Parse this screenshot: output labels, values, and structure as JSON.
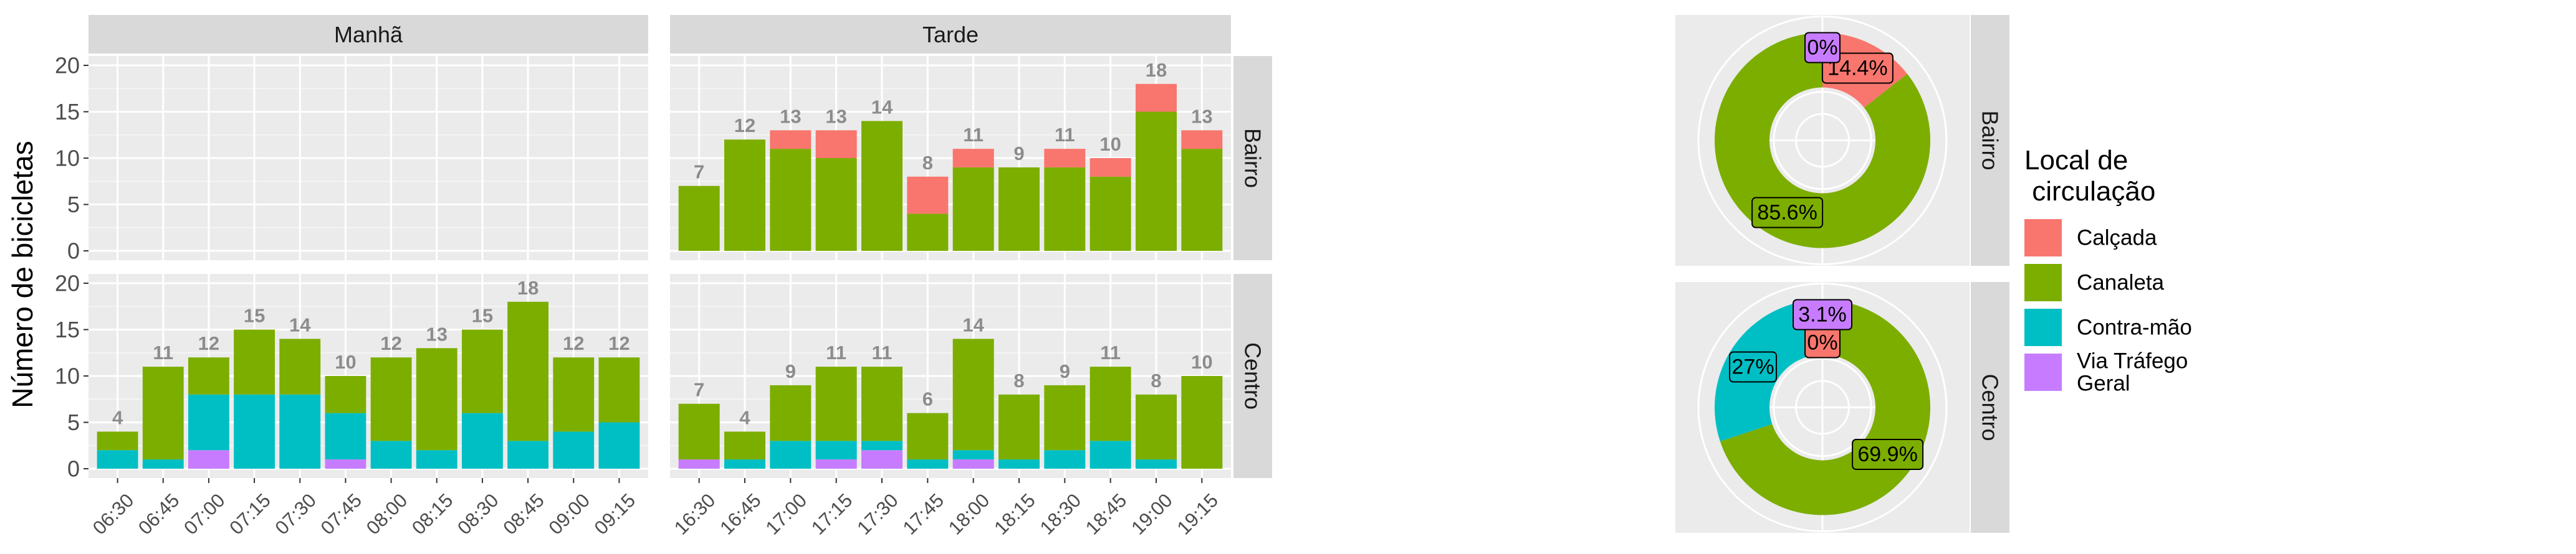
{
  "chart_data": [
    {
      "type": "bar",
      "stacked": true,
      "ylabel": "Número de bicicletas",
      "ylim": [
        0,
        20
      ],
      "yticks": [
        0,
        5,
        10,
        15,
        20
      ],
      "column_facets": [
        "Manhã",
        "Tarde"
      ],
      "row_facets": [
        "Bairro",
        "Centro"
      ],
      "series_order": [
        "Calçada",
        "Canaleta",
        "Contra-mão",
        "Via Tráfego Geral"
      ],
      "colors": {
        "Calçada": "#F8766D",
        "Canaleta": "#7CAE00",
        "Contra-mão": "#00BFC4",
        "Via Tráfego Geral": "#C77CFF"
      },
      "grid": true,
      "panels": [
        {
          "column": "Manhã",
          "row": "Bairro",
          "categories": [
            "06:30",
            "06:45",
            "07:00",
            "07:15",
            "07:30",
            "07:45",
            "08:00",
            "08:15",
            "08:30",
            "08:45",
            "09:00",
            "09:15"
          ],
          "bars": [],
          "totals": []
        },
        {
          "column": "Tarde",
          "row": "Bairro",
          "categories": [
            "16:30",
            "16:45",
            "17:00",
            "17:15",
            "17:30",
            "17:45",
            "18:00",
            "18:15",
            "18:30",
            "18:45",
            "19:00",
            "19:15"
          ],
          "bars": [
            {
              "Via Tráfego Geral": 0,
              "Contra-mão": 0,
              "Canaleta": 7,
              "Calçada": 0
            },
            {
              "Via Tráfego Geral": 0,
              "Contra-mão": 0,
              "Canaleta": 12,
              "Calçada": 0
            },
            {
              "Via Tráfego Geral": 0,
              "Contra-mão": 0,
              "Canaleta": 11,
              "Calçada": 2
            },
            {
              "Via Tráfego Geral": 0,
              "Contra-mão": 0,
              "Canaleta": 10,
              "Calçada": 3
            },
            {
              "Via Tráfego Geral": 0,
              "Contra-mão": 0,
              "Canaleta": 14,
              "Calçada": 0
            },
            {
              "Via Tráfego Geral": 0,
              "Contra-mão": 0,
              "Canaleta": 4,
              "Calçada": 4
            },
            {
              "Via Tráfego Geral": 0,
              "Contra-mão": 0,
              "Canaleta": 9,
              "Calçada": 2
            },
            {
              "Via Tráfego Geral": 0,
              "Contra-mão": 0,
              "Canaleta": 9,
              "Calçada": 0
            },
            {
              "Via Tráfego Geral": 0,
              "Contra-mão": 0,
              "Canaleta": 9,
              "Calçada": 2
            },
            {
              "Via Tráfego Geral": 0,
              "Contra-mão": 0,
              "Canaleta": 8,
              "Calçada": 2
            },
            {
              "Via Tráfego Geral": 0,
              "Contra-mão": 0,
              "Canaleta": 15,
              "Calçada": 3
            },
            {
              "Via Tráfego Geral": 0,
              "Contra-mão": 0,
              "Canaleta": 11,
              "Calçada": 2
            }
          ],
          "totals": [
            7,
            12,
            13,
            13,
            14,
            8,
            11,
            9,
            11,
            10,
            18,
            13
          ]
        },
        {
          "column": "Manhã",
          "row": "Centro",
          "categories": [
            "06:30",
            "06:45",
            "07:00",
            "07:15",
            "07:30",
            "07:45",
            "08:00",
            "08:15",
            "08:30",
            "08:45",
            "09:00",
            "09:15"
          ],
          "bars": [
            {
              "Via Tráfego Geral": 0,
              "Contra-mão": 2,
              "Canaleta": 2,
              "Calçada": 0
            },
            {
              "Via Tráfego Geral": 0,
              "Contra-mão": 1,
              "Canaleta": 10,
              "Calçada": 0
            },
            {
              "Via Tráfego Geral": 2,
              "Contra-mão": 6,
              "Canaleta": 4,
              "Calçada": 0
            },
            {
              "Via Tráfego Geral": 0,
              "Contra-mão": 8,
              "Canaleta": 7,
              "Calçada": 0
            },
            {
              "Via Tráfego Geral": 0,
              "Contra-mão": 8,
              "Canaleta": 6,
              "Calçada": 0
            },
            {
              "Via Tráfego Geral": 1,
              "Contra-mão": 5,
              "Canaleta": 4,
              "Calçada": 0
            },
            {
              "Via Tráfego Geral": 0,
              "Contra-mão": 3,
              "Canaleta": 9,
              "Calçada": 0
            },
            {
              "Via Tráfego Geral": 0,
              "Contra-mão": 2,
              "Canaleta": 11,
              "Calçada": 0
            },
            {
              "Via Tráfego Geral": 0,
              "Contra-mão": 6,
              "Canaleta": 9,
              "Calçada": 0
            },
            {
              "Via Tráfego Geral": 0,
              "Contra-mão": 3,
              "Canaleta": 15,
              "Calçada": 0
            },
            {
              "Via Tráfego Geral": 0,
              "Contra-mão": 4,
              "Canaleta": 8,
              "Calçada": 0
            },
            {
              "Via Tráfego Geral": 0,
              "Contra-mão": 5,
              "Canaleta": 7,
              "Calçada": 0
            }
          ],
          "totals": [
            4,
            11,
            12,
            15,
            14,
            10,
            12,
            13,
            15,
            18,
            12,
            12
          ]
        },
        {
          "column": "Tarde",
          "row": "Centro",
          "categories": [
            "16:30",
            "16:45",
            "17:00",
            "17:15",
            "17:30",
            "17:45",
            "18:00",
            "18:15",
            "18:30",
            "18:45",
            "19:00",
            "19:15"
          ],
          "bars": [
            {
              "Via Tráfego Geral": 1,
              "Contra-mão": 0,
              "Canaleta": 6,
              "Calçada": 0
            },
            {
              "Via Tráfego Geral": 0,
              "Contra-mão": 1,
              "Canaleta": 3,
              "Calçada": 0
            },
            {
              "Via Tráfego Geral": 0,
              "Contra-mão": 3,
              "Canaleta": 6,
              "Calçada": 0
            },
            {
              "Via Tráfego Geral": 1,
              "Contra-mão": 2,
              "Canaleta": 8,
              "Calçada": 0
            },
            {
              "Via Tráfego Geral": 2,
              "Contra-mão": 1,
              "Canaleta": 8,
              "Calçada": 0
            },
            {
              "Via Tráfego Geral": 0,
              "Contra-mão": 1,
              "Canaleta": 5,
              "Calçada": 0
            },
            {
              "Via Tráfego Geral": 1,
              "Contra-mão": 1,
              "Canaleta": 12,
              "Calçada": 0
            },
            {
              "Via Tráfego Geral": 0,
              "Contra-mão": 1,
              "Canaleta": 7,
              "Calçada": 0
            },
            {
              "Via Tráfego Geral": 0,
              "Contra-mão": 2,
              "Canaleta": 7,
              "Calçada": 0
            },
            {
              "Via Tráfego Geral": 0,
              "Contra-mão": 3,
              "Canaleta": 8,
              "Calçada": 0
            },
            {
              "Via Tráfego Geral": 0,
              "Contra-mão": 1,
              "Canaleta": 7,
              "Calçada": 0
            },
            {
              "Via Tráfego Geral": 0,
              "Contra-mão": 0,
              "Canaleta": 10,
              "Calçada": 0
            }
          ],
          "totals": [
            7,
            4,
            9,
            11,
            11,
            6,
            14,
            8,
            9,
            11,
            8,
            10
          ]
        }
      ]
    },
    {
      "type": "pie",
      "donut": true,
      "panels": [
        {
          "row": "Bairro",
          "slices": [
            {
              "name": "Calçada",
              "value": 14.4,
              "label": "14.4%"
            },
            {
              "name": "Canaleta",
              "value": 85.6,
              "label": "85.6%"
            },
            {
              "name": "Contra-mão",
              "value": 0,
              "label": null
            },
            {
              "name": "Via Tráfego Geral",
              "value": 0,
              "label": "0%"
            }
          ]
        },
        {
          "row": "Centro",
          "slices": [
            {
              "name": "Calçada",
              "value": 0,
              "label": "0%"
            },
            {
              "name": "Canaleta",
              "value": 69.9,
              "label": "69.9%"
            },
            {
              "name": "Contra-mão",
              "value": 27,
              "label": "27%"
            },
            {
              "name": "Via Tráfego Geral",
              "value": 3.1,
              "label": "3.1%"
            }
          ]
        }
      ]
    }
  ],
  "legend": {
    "title_line1": "Local de",
    "title_line2": " circulação",
    "items": [
      {
        "key": "Calçada",
        "label_lines": [
          "Calçada"
        ]
      },
      {
        "key": "Canaleta",
        "label_lines": [
          "Canaleta"
        ]
      },
      {
        "key": "Contra-mão",
        "label_lines": [
          "Contra-mão"
        ]
      },
      {
        "key": "Via Tráfego Geral",
        "label_lines": [
          "Via Tráfego",
          " Geral"
        ]
      }
    ]
  }
}
